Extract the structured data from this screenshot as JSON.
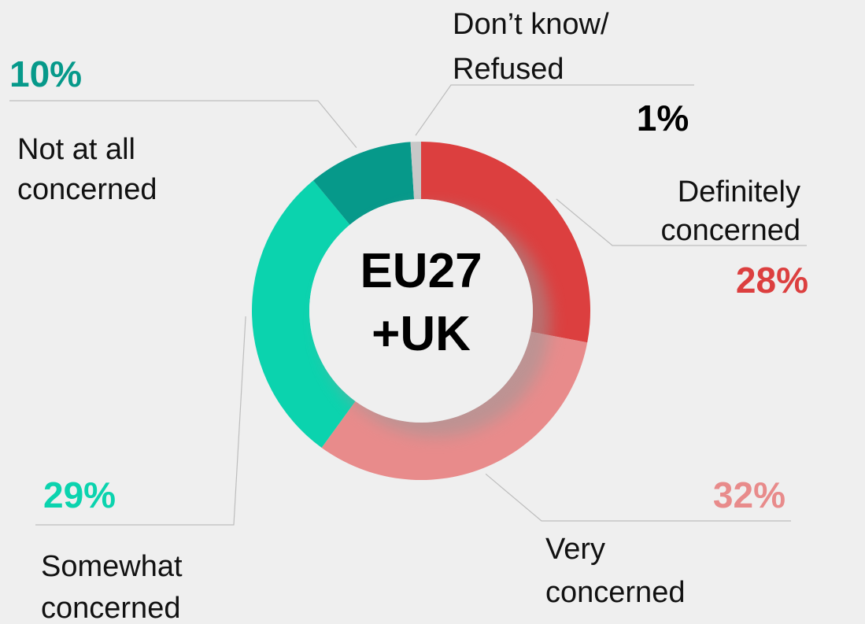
{
  "chart_data": {
    "type": "pie",
    "variant": "donut",
    "center_label": [
      "EU27",
      "+UK"
    ],
    "slices": [
      {
        "name": "Definitely concerned",
        "label_lines": [
          "Definitely",
          "concerned"
        ],
        "value": 28,
        "value_text": "28%",
        "color": "#dc3f3f"
      },
      {
        "name": "Very concerned",
        "label_lines": [
          "Very",
          "concerned"
        ],
        "value": 32,
        "value_text": "32%",
        "color": "#e88b8b"
      },
      {
        "name": "Somewhat concerned",
        "label_lines": [
          "Somewhat",
          "concerned"
        ],
        "value": 29,
        "value_text": "29%",
        "color": "#0bd3ae"
      },
      {
        "name": "Not at all concerned",
        "label_lines": [
          "Not at all",
          "concerned"
        ],
        "value": 10,
        "value_text": "10%",
        "color": "#06998a"
      },
      {
        "name": "Don't know/ Refused",
        "label_lines": [
          "Don’t know/",
          "Refused"
        ],
        "value": 1,
        "value_text": "1%",
        "color": "#c8c8c8"
      }
    ],
    "legend": "none"
  }
}
